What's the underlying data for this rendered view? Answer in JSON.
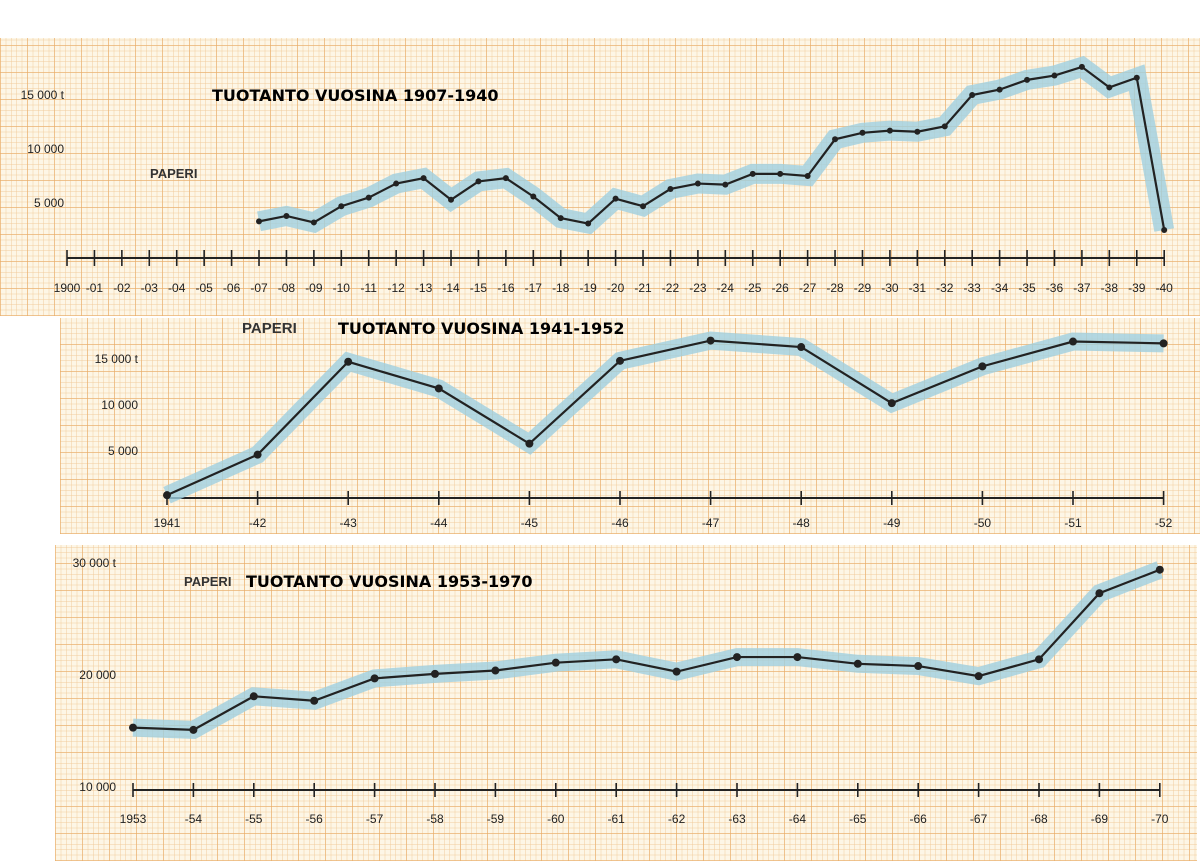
{
  "colors": {
    "paper": "#fdf6e6",
    "grid": "#e8aa64",
    "band": "#9fd0e0",
    "line": "#222222"
  },
  "chart_data": [
    {
      "type": "line",
      "title": "TUOTANTO VUOSINA 1907-1940",
      "label": "PAPERI",
      "y_tick_labels": [
        "5 000",
        "10 000",
        "15 000 t"
      ],
      "y_ticks": [
        5000,
        10000,
        15000
      ],
      "ylim": [
        0,
        18000
      ],
      "x_tick_labels": [
        "1900",
        "-01",
        "-02",
        "-03",
        "-04",
        "-05",
        "-06",
        "-07",
        "-08",
        "-09",
        "-10",
        "-11",
        "-12",
        "-13",
        "-14",
        "-15",
        "-16",
        "-17",
        "-18",
        "-19",
        "-20",
        "-21",
        "-22",
        "-23",
        "-24",
        "-25",
        "-26",
        "-27",
        "-28",
        "-29",
        "-30",
        "-31",
        "-32",
        "-33",
        "-34",
        "-35",
        "-36",
        "-37",
        "-38",
        "-39",
        "-40"
      ],
      "x_ticks": [
        1900,
        1901,
        1902,
        1903,
        1904,
        1905,
        1906,
        1907,
        1908,
        1909,
        1910,
        1911,
        1912,
        1913,
        1914,
        1915,
        1916,
        1917,
        1918,
        1919,
        1920,
        1921,
        1922,
        1923,
        1924,
        1925,
        1926,
        1927,
        1928,
        1929,
        1930,
        1931,
        1932,
        1933,
        1934,
        1935,
        1936,
        1937,
        1938,
        1939,
        1940
      ],
      "x": [
        1907,
        1908,
        1909,
        1910,
        1911,
        1912,
        1913,
        1914,
        1915,
        1916,
        1917,
        1918,
        1919,
        1920,
        1921,
        1922,
        1923,
        1924,
        1925,
        1926,
        1927,
        1928,
        1929,
        1930,
        1931,
        1932,
        1933,
        1934,
        1935,
        1936,
        1937,
        1938,
        1939,
        1940
      ],
      "values": [
        3300,
        3800,
        3200,
        4700,
        5500,
        6800,
        7300,
        5300,
        7000,
        7300,
        5600,
        3600,
        3100,
        5400,
        4700,
        6300,
        6800,
        6700,
        7700,
        7700,
        7500,
        10900,
        11500,
        11700,
        11600,
        12100,
        15000,
        15500,
        16400,
        16800,
        17600,
        15700,
        16600,
        2500
      ]
    },
    {
      "type": "line",
      "title": "TUOTANTO VUOSINA 1941-1952",
      "label": "PAPERI",
      "y_tick_labels": [
        "5 000",
        "10 000",
        "15 000 t"
      ],
      "y_ticks": [
        5000,
        10000,
        15000
      ],
      "ylim": [
        0,
        18000
      ],
      "x_tick_labels": [
        "1941",
        "-42",
        "-43",
        "-44",
        "-45",
        "-46",
        "-47",
        "-48",
        "-49",
        "-50",
        "-51",
        "-52"
      ],
      "x_ticks": [
        1941,
        1942,
        1943,
        1944,
        1945,
        1946,
        1947,
        1948,
        1949,
        1950,
        1951,
        1952
      ],
      "x": [
        1941,
        1942,
        1943,
        1944,
        1945,
        1946,
        1947,
        1948,
        1949,
        1950,
        1951,
        1952
      ],
      "values": [
        200,
        4600,
        14700,
        11800,
        5800,
        14800,
        17000,
        16300,
        10200,
        14200,
        16900,
        16700
      ]
    },
    {
      "type": "line",
      "title": "TUOTANTO VUOSINA 1953-1970",
      "label": "PAPERI",
      "y_tick_labels": [
        "10 000",
        "20 000",
        "30 000 t"
      ],
      "y_ticks": [
        10000,
        20000,
        30000
      ],
      "ylim": [
        10000,
        30000
      ],
      "x_tick_labels": [
        "1953",
        "-54",
        "-55",
        "-56",
        "-57",
        "-58",
        "-59",
        "-60",
        "-61",
        "-62",
        "-63",
        "-64",
        "-65",
        "-66",
        "-67",
        "-68",
        "-69",
        "-70"
      ],
      "x_ticks": [
        1953,
        1954,
        1955,
        1956,
        1957,
        1958,
        1959,
        1960,
        1961,
        1962,
        1963,
        1964,
        1965,
        1966,
        1967,
        1968,
        1969,
        1970
      ],
      "x": [
        1953,
        1954,
        1955,
        1956,
        1957,
        1958,
        1959,
        1960,
        1961,
        1962,
        1963,
        1964,
        1965,
        1966,
        1967,
        1968,
        1969,
        1970
      ],
      "values": [
        15300,
        15100,
        18100,
        17700,
        19700,
        20100,
        20400,
        21100,
        21400,
        20300,
        21600,
        21600,
        21000,
        20800,
        19900,
        21400,
        27300,
        29400
      ]
    }
  ]
}
